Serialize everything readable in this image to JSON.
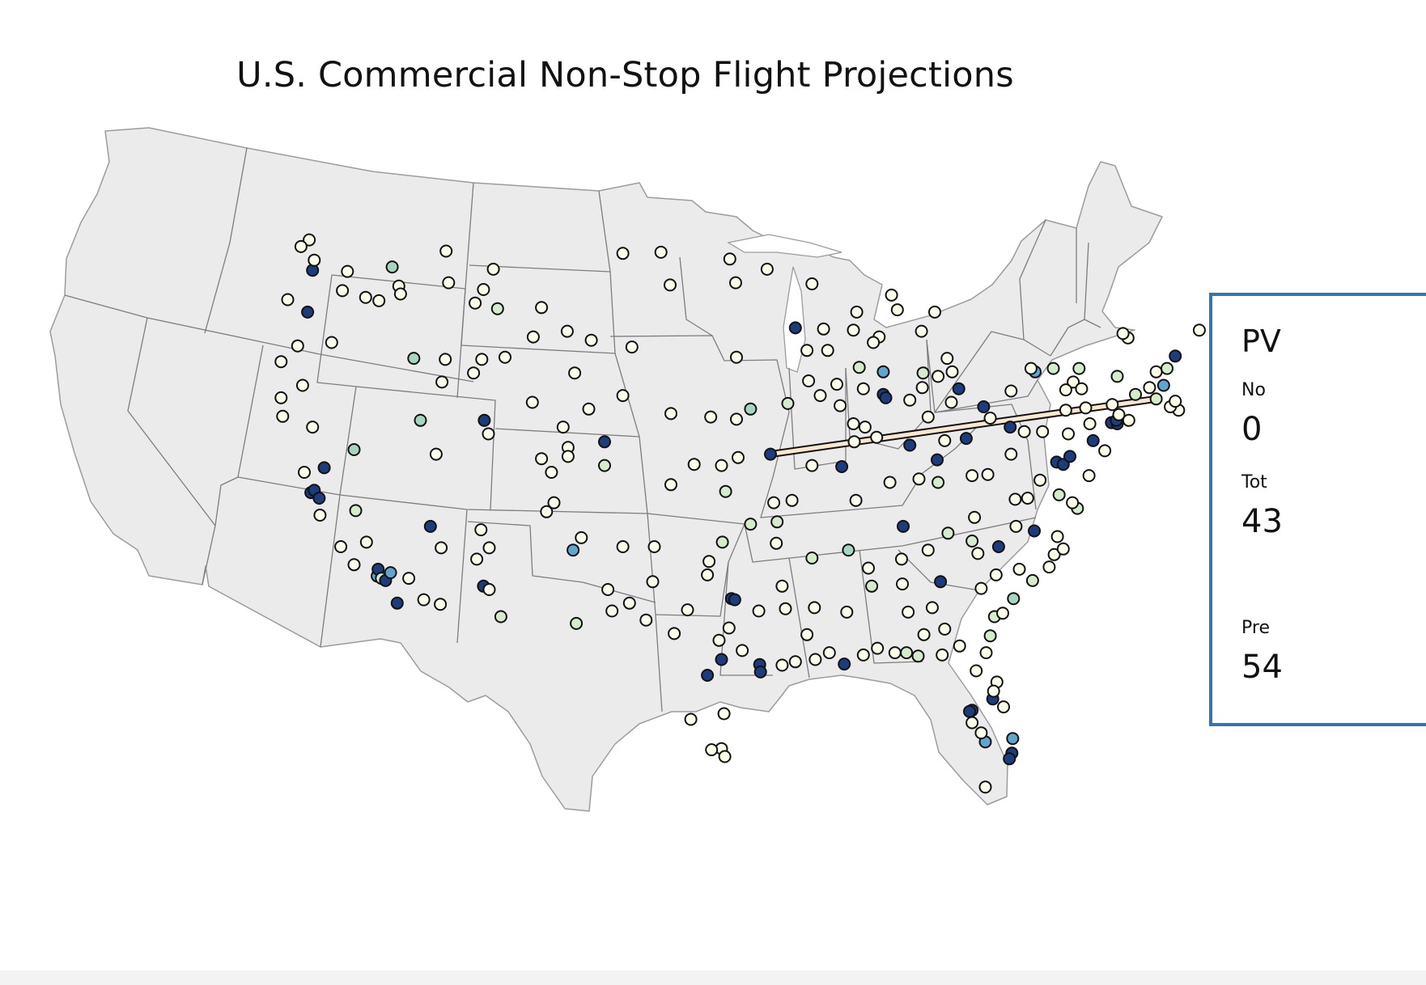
{
  "title": "U.S. Commercial Non-Stop Flight Projections",
  "colors": {
    "land": "#ebebeb",
    "border": "#7d7d7d",
    "route": "#fbe6cf",
    "panel_border": "#3a73a8",
    "c1": "#fdfee9",
    "c2": "#d4eccb",
    "c3": "#a6d6c0",
    "c4": "#5fa5cf",
    "c5": "#1d3c7b"
  },
  "panel": {
    "code": "PV",
    "nonstop_label": "No",
    "nonstop_value": "0",
    "total_label": "Tot",
    "total_value": "43",
    "predicted_label": "Pre",
    "predicted_value": "54"
  },
  "route": {
    "from": "MCI",
    "to": "PVD"
  },
  "airports": [
    [
      "BLI",
      -122.5,
      48.8,
      1
    ],
    [
      "FHR",
      -123.0,
      48.5,
      1
    ],
    [
      "SEA",
      -122.3,
      47.45,
      5
    ],
    [
      "PAE",
      -122.2,
      47.9,
      1
    ],
    [
      "EAT",
      -120.2,
      47.4,
      1
    ],
    [
      "YKM",
      -120.5,
      46.55,
      1
    ],
    [
      "PSC",
      -119.1,
      46.25,
      1
    ],
    [
      "ALW",
      -118.3,
      46.1,
      1
    ],
    [
      "PUW",
      -117.1,
      46.75,
      1
    ],
    [
      "LWS",
      -117.0,
      46.4,
      1
    ],
    [
      "GEG",
      -117.5,
      47.6,
      3
    ],
    [
      "PDX",
      -122.6,
      45.6,
      5
    ],
    [
      "AST",
      -123.8,
      46.15,
      1
    ],
    [
      "RDM",
      -121.15,
      44.25,
      1
    ],
    [
      "EUG",
      -123.2,
      44.1,
      1
    ],
    [
      "MFR",
      -122.9,
      42.35,
      1
    ],
    [
      "OTH",
      -124.2,
      43.4,
      1
    ],
    [
      "ACV",
      -124.1,
      40.98,
      1
    ],
    [
      "RDD",
      -122.3,
      40.5,
      1
    ],
    [
      "CEC",
      -124.2,
      41.8,
      1
    ],
    [
      "SMF",
      -121.6,
      38.7,
      5
    ],
    [
      "SFO",
      -122.4,
      37.6,
      5
    ],
    [
      "OAK",
      -122.2,
      37.7,
      5
    ],
    [
      "SJC",
      -121.9,
      37.35,
      5
    ],
    [
      "STS",
      -122.8,
      38.5,
      1
    ],
    [
      "MRY",
      -121.85,
      36.6,
      1
    ],
    [
      "SBP",
      -120.6,
      35.2,
      1
    ],
    [
      "SBA",
      -119.8,
      34.4,
      1
    ],
    [
      "FAT",
      -119.7,
      36.8,
      2
    ],
    [
      "BFL",
      -119.05,
      35.4,
      1
    ],
    [
      "LAX",
      -118.4,
      33.9,
      4
    ],
    [
      "BUR",
      -118.35,
      34.2,
      5
    ],
    [
      "LGB",
      -118.15,
      33.8,
      2
    ],
    [
      "SNA",
      -117.9,
      33.7,
      5
    ],
    [
      "ONT",
      -117.6,
      34.05,
      4
    ],
    [
      "PSP",
      -116.5,
      33.8,
      1
    ],
    [
      "SAN",
      -117.2,
      32.7,
      5
    ],
    [
      "RNO",
      -119.8,
      39.5,
      3
    ],
    [
      "LAS",
      -115.2,
      36.1,
      5
    ],
    [
      "BOI",
      -116.2,
      43.55,
      3
    ],
    [
      "SUN",
      -114.3,
      43.5,
      1
    ],
    [
      "TWF",
      -114.5,
      42.5,
      1
    ],
    [
      "IDA",
      -112.1,
      43.5,
      1
    ],
    [
      "PIH",
      -112.6,
      42.9,
      1
    ],
    [
      "JAC",
      -110.7,
      43.6,
      1
    ],
    [
      "BZN",
      -111.15,
      45.75,
      2
    ],
    [
      "MSO",
      -114.1,
      46.9,
      1
    ],
    [
      "HLN",
      -112.0,
      46.6,
      1
    ],
    [
      "BTM",
      -112.5,
      46.0,
      1
    ],
    [
      "GTF",
      -111.4,
      47.5,
      1
    ],
    [
      "FCA",
      -114.25,
      48.3,
      1
    ],
    [
      "BIL",
      -108.5,
      45.8,
      1
    ],
    [
      "COD",
      -109.0,
      44.5,
      1
    ],
    [
      "CPR",
      -106.5,
      42.9,
      1
    ],
    [
      "SLC",
      -111.95,
      40.8,
      5
    ],
    [
      "PVU",
      -111.7,
      40.2,
      1
    ],
    [
      "HDN",
      -107.2,
      40.5,
      1
    ],
    [
      "EGE",
      -106.9,
      39.6,
      1
    ],
    [
      "ASE",
      -106.9,
      39.2,
      1
    ],
    [
      "GJT",
      -108.5,
      39.1,
      1
    ],
    [
      "DEN",
      -104.7,
      39.85,
      5
    ],
    [
      "COS",
      -104.7,
      38.8,
      2
    ],
    [
      "MTJ",
      -107.9,
      38.5,
      1
    ],
    [
      "DRO",
      -107.75,
      37.15,
      1
    ],
    [
      "GCN",
      -112.15,
      35.95,
      1
    ],
    [
      "FLG",
      -111.65,
      35.15,
      1
    ],
    [
      "PHX",
      -112.0,
      33.45,
      5
    ],
    [
      "AZA",
      -111.65,
      33.3,
      1
    ],
    [
      "TUS",
      -110.95,
      32.1,
      2
    ],
    [
      "YUM",
      -114.6,
      32.65,
      1
    ],
    [
      "FMN",
      -108.2,
      36.75,
      1
    ],
    [
      "SAF",
      -106.1,
      35.6,
      1
    ],
    [
      "ABQ",
      -106.6,
      35.05,
      4
    ],
    [
      "ROW",
      -104.5,
      33.3,
      1
    ],
    [
      "ELP",
      -106.4,
      31.8,
      2
    ],
    [
      "MAF",
      -102.2,
      31.95,
      1
    ],
    [
      "LBB",
      -101.8,
      33.65,
      1
    ],
    [
      "AMA",
      -101.7,
      35.2,
      1
    ],
    [
      "SJT",
      -100.5,
      31.35,
      1
    ],
    [
      "ABI",
      -99.7,
      32.4,
      1
    ],
    [
      "DFW",
      -97.05,
      32.9,
      5
    ],
    [
      "DAL",
      -96.85,
      32.85,
      5
    ],
    [
      "SPS",
      -98.5,
      33.95,
      1
    ],
    [
      "ACT",
      -97.2,
      31.6,
      1
    ],
    [
      "AUS",
      -97.65,
      30.2,
      5
    ],
    [
      "SAT",
      -98.5,
      29.5,
      5
    ],
    [
      "GRK",
      -97.8,
      31.05,
      1
    ],
    [
      "CLL",
      -96.4,
      30.6,
      1
    ],
    [
      "IAH",
      -95.35,
      29.98,
      5
    ],
    [
      "HOU",
      -95.3,
      29.65,
      5
    ],
    [
      "TYR",
      -95.4,
      32.35,
      1
    ],
    [
      "BPT",
      -94.0,
      29.95,
      1
    ],
    [
      "CRP",
      -97.5,
      27.8,
      1
    ],
    [
      "LRD",
      -99.5,
      27.55,
      1
    ],
    [
      "HRL",
      -97.65,
      26.25,
      1
    ],
    [
      "MFE",
      -98.25,
      26.2,
      1
    ],
    [
      "BRO",
      -97.45,
      25.9,
      1
    ],
    [
      "LAW",
      -98.4,
      34.55,
      1
    ],
    [
      "OKC",
      -97.6,
      35.4,
      2
    ],
    [
      "TUL",
      -95.9,
      36.2,
      2
    ],
    [
      "XNA",
      -94.3,
      36.3,
      2
    ],
    [
      "FSM",
      -94.35,
      35.35,
      1
    ],
    [
      "LIT",
      -92.2,
      34.7,
      2
    ],
    [
      "TXK",
      -94.0,
      33.45,
      1
    ],
    [
      "SHV",
      -93.8,
      32.45,
      1
    ],
    [
      "MLU",
      -92.05,
      32.5,
      1
    ],
    [
      "AEX",
      -92.5,
      31.3,
      1
    ],
    [
      "LFT",
      -92.0,
      30.2,
      1
    ],
    [
      "LCH",
      -93.2,
      30.1,
      1
    ],
    [
      "BTR",
      -91.15,
      30.5,
      1
    ],
    [
      "MSY",
      -90.25,
      30.0,
      5
    ],
    [
      "GPT",
      -89.1,
      30.4,
      1
    ],
    [
      "JAN",
      -90.1,
      32.3,
      1
    ],
    [
      "MEM",
      -90.0,
      35.05,
      3
    ],
    [
      "TUP",
      -88.8,
      34.25,
      1
    ],
    [
      "GTR",
      -88.6,
      33.45,
      2
    ],
    [
      "HSV",
      -86.8,
      34.65,
      1
    ],
    [
      "BHM",
      -86.75,
      33.55,
      1
    ],
    [
      "MGM",
      -86.4,
      32.3,
      1
    ],
    [
      "DHN",
      -85.45,
      31.3,
      1
    ],
    [
      "MOB",
      -88.25,
      30.7,
      1
    ],
    [
      "PNS",
      -87.2,
      30.5,
      1
    ],
    [
      "VPS",
      -86.5,
      30.5,
      2
    ],
    [
      "ECP",
      -85.8,
      30.35,
      2
    ],
    [
      "TLH",
      -84.35,
      30.4,
      1
    ],
    [
      "VLD",
      -83.3,
      30.8,
      1
    ],
    [
      "ABY",
      -84.2,
      31.55,
      1
    ],
    [
      "CSG",
      -84.95,
      32.5,
      1
    ],
    [
      "ATL",
      -84.45,
      33.65,
      5
    ],
    [
      "AGS",
      -82.0,
      33.35,
      1
    ],
    [
      "SAV",
      -81.2,
      32.1,
      2
    ],
    [
      "BQK",
      -81.45,
      31.25,
      2
    ],
    [
      "JAX",
      -81.7,
      30.5,
      1
    ],
    [
      "GNV",
      -82.3,
      29.7,
      1
    ],
    [
      "DAB",
      -81.05,
      29.2,
      1
    ],
    [
      "MCO",
      -81.3,
      28.45,
      5
    ],
    [
      "SFB",
      -81.25,
      28.8,
      1
    ],
    [
      "MLB",
      -80.65,
      28.1,
      1
    ],
    [
      "TPA",
      -82.55,
      27.95,
      5
    ],
    [
      "PIE",
      -82.7,
      27.9,
      5
    ],
    [
      "SRQ",
      -82.55,
      27.4,
      1
    ],
    [
      "RSW",
      -81.75,
      26.55,
      4
    ],
    [
      "PGD",
      -82.0,
      26.95,
      1
    ],
    [
      "PBI",
      -80.1,
      26.7,
      4
    ],
    [
      "FLL",
      -80.15,
      26.05,
      5
    ],
    [
      "MIA",
      -80.3,
      25.8,
      5
    ],
    [
      "EYW",
      -81.75,
      24.55,
      1
    ],
    [
      "BNA",
      -86.7,
      36.1,
      5
    ],
    [
      "TYS",
      -84.0,
      35.8,
      2
    ],
    [
      "TRI",
      -82.4,
      36.5,
      1
    ],
    [
      "CHA",
      -85.2,
      35.05,
      1
    ],
    [
      "AVL",
      -82.55,
      35.45,
      2
    ],
    [
      "GSP",
      -82.2,
      34.9,
      1
    ],
    [
      "CLT",
      -80.95,
      35.2,
      5
    ],
    [
      "GSO",
      -79.9,
      36.1,
      1
    ],
    [
      "RDU",
      -78.8,
      35.9,
      5
    ],
    [
      "CAE",
      -81.1,
      33.95,
      1
    ],
    [
      "FLO",
      -79.7,
      34.2,
      1
    ],
    [
      "MYR",
      -78.9,
      33.7,
      2
    ],
    [
      "CHS",
      -80.05,
      32.9,
      3
    ],
    [
      "HHH",
      -80.7,
      32.25,
      1
    ],
    [
      "ILM",
      -77.9,
      34.3,
      1
    ],
    [
      "OAJ",
      -77.6,
      34.85,
      1
    ],
    [
      "EWN",
      -77.05,
      35.1,
      1
    ],
    [
      "PGV",
      -77.4,
      35.65,
      1
    ],
    [
      "ROA",
      -79.95,
      37.3,
      1
    ],
    [
      "LYH",
      -79.2,
      37.35,
      1
    ],
    [
      "CHO",
      -78.45,
      38.15,
      1
    ],
    [
      "RIC",
      -77.3,
      37.5,
      2
    ],
    [
      "ORF",
      -76.2,
      36.9,
      2
    ],
    [
      "PHF",
      -76.5,
      37.15,
      1
    ],
    [
      "IAD",
      -77.45,
      38.95,
      5
    ],
    [
      "DCA",
      -77.05,
      38.85,
      5
    ],
    [
      "BWI",
      -76.65,
      39.2,
      5
    ],
    [
      "SBY",
      -75.5,
      38.35,
      1
    ],
    [
      "CRW",
      -81.6,
      38.4,
      1
    ],
    [
      "HTS",
      -82.55,
      38.35,
      1
    ],
    [
      "CKB",
      -80.2,
      39.3,
      1
    ],
    [
      "PIT",
      -80.25,
      40.5,
      5
    ],
    [
      "ERI",
      -80.2,
      42.1,
      1
    ],
    [
      "LBE",
      -79.4,
      40.3,
      1
    ],
    [
      "AOO",
      -78.3,
      40.3,
      1
    ],
    [
      "IPT",
      -76.9,
      41.25,
      1
    ],
    [
      "AVP",
      -75.7,
      41.35,
      1
    ],
    [
      "ABE",
      -75.45,
      40.65,
      1
    ],
    [
      "PHL",
      -75.25,
      39.9,
      5
    ],
    [
      "ACY",
      -74.55,
      39.45,
      1
    ],
    [
      "MDT",
      -76.75,
      40.2,
      1
    ],
    [
      "EWR",
      -74.15,
      40.7,
      5
    ],
    [
      "JFK",
      -73.8,
      40.65,
      5
    ],
    [
      "LGA",
      -73.85,
      40.8,
      5
    ],
    [
      "HPN",
      -73.7,
      41.05,
      1
    ],
    [
      "ISP",
      -73.1,
      40.8,
      1
    ],
    [
      "BDL",
      -72.7,
      41.95,
      2
    ],
    [
      "PVD",
      -71.45,
      41.75,
      2
    ],
    [
      "BOS",
      -71.0,
      42.35,
      4
    ],
    [
      "ACK",
      -70.1,
      41.25,
      1
    ],
    [
      "MVY",
      -70.6,
      41.4,
      1
    ],
    [
      "HYA",
      -70.3,
      41.65,
      1
    ],
    [
      "ORH",
      -71.85,
      42.25,
      1
    ],
    [
      "MHT",
      -71.45,
      42.95,
      1
    ],
    [
      "PSM",
      -70.8,
      43.1,
      2
    ],
    [
      "PWM",
      -70.3,
      43.65,
      5
    ],
    [
      "BGR",
      -68.85,
      44.8,
      1
    ],
    [
      "BTV",
      -73.15,
      44.45,
      1
    ],
    [
      "PBG",
      -73.45,
      44.65,
      1
    ],
    [
      "ALB",
      -73.8,
      42.75,
      2
    ],
    [
      "SWF",
      -74.1,
      41.5,
      1
    ],
    [
      "ITH",
      -76.45,
      42.5,
      1
    ],
    [
      "ELM",
      -76.9,
      42.15,
      1
    ],
    [
      "SYR",
      -76.1,
      43.1,
      2
    ],
    [
      "ROC",
      -77.65,
      43.1,
      2
    ],
    [
      "BUF",
      -78.75,
      42.95,
      4
    ],
    [
      "IAG",
      -79.0,
      43.1,
      1
    ],
    [
      "BGM",
      -75.95,
      42.2,
      1
    ],
    [
      "CLE",
      -81.85,
      41.4,
      5
    ],
    [
      "CAK",
      -81.45,
      40.9,
      1
    ],
    [
      "TOL",
      -83.8,
      41.6,
      1
    ],
    [
      "DAY",
      -84.2,
      39.9,
      1
    ],
    [
      "CMH",
      -82.9,
      40.0,
      5
    ],
    [
      "CVG",
      -84.65,
      39.05,
      5
    ],
    [
      "SDF",
      -85.75,
      38.2,
      1
    ],
    [
      "LEX",
      -84.6,
      38.05,
      2
    ],
    [
      "EVV",
      -87.5,
      38.05,
      1
    ],
    [
      "IND",
      -86.3,
      39.7,
      5
    ],
    [
      "FWA",
      -85.2,
      40.95,
      1
    ],
    [
      "SBN",
      -86.3,
      41.7,
      1
    ],
    [
      "DTW",
      -83.35,
      42.2,
      5
    ],
    [
      "FNT",
      -83.75,
      42.95,
      1
    ],
    [
      "MBS",
      -84.05,
      43.55,
      1
    ],
    [
      "GRR",
      -85.5,
      42.9,
      2
    ],
    [
      "LAN",
      -84.6,
      42.75,
      1
    ],
    [
      "AZO",
      -85.55,
      42.25,
      1
    ],
    [
      "TVC",
      -85.6,
      44.75,
      1
    ],
    [
      "PLN",
      -84.8,
      45.6,
      1
    ],
    [
      "MQT",
      -87.4,
      46.35,
      1
    ],
    [
      "ESC",
      -87.05,
      45.7,
      1
    ],
    [
      "GRB",
      -88.15,
      44.5,
      1
    ],
    [
      "ATW",
      -88.5,
      44.25,
      1
    ],
    [
      "MKE",
      -87.9,
      42.95,
      4
    ],
    [
      "MSN",
      -89.35,
      43.15,
      2
    ],
    [
      "CWA",
      -89.7,
      44.8,
      1
    ],
    [
      "EAU",
      -91.5,
      44.85,
      1
    ],
    [
      "LSE",
      -91.25,
      43.9,
      1
    ],
    [
      "RHI",
      -89.5,
      45.6,
      1
    ],
    [
      "MSP",
      -93.2,
      44.9,
      5
    ],
    [
      "RST",
      -92.5,
      43.9,
      1
    ],
    [
      "DLH",
      -92.2,
      46.85,
      1
    ],
    [
      "BJI",
      -94.9,
      47.5,
      1
    ],
    [
      "ORD",
      -87.9,
      41.95,
      5
    ],
    [
      "MDW",
      -87.75,
      41.8,
      5
    ],
    [
      "RFD",
      -89.1,
      42.2,
      1
    ],
    [
      "MLI",
      -90.5,
      41.45,
      1
    ],
    [
      "PIA",
      -89.7,
      40.65,
      1
    ],
    [
      "BMI",
      -89.0,
      40.5,
      1
    ],
    [
      "CMI",
      -88.3,
      40.05,
      1
    ],
    [
      "SPI",
      -89.65,
      39.85,
      1
    ],
    [
      "DSM",
      -93.65,
      41.55,
      2
    ],
    [
      "CID",
      -91.7,
      41.9,
      1
    ],
    [
      "DBQ",
      -90.7,
      42.4,
      1
    ],
    [
      "ALO",
      -92.4,
      42.55,
      1
    ],
    [
      "OMA",
      -95.9,
      41.3,
      3
    ],
    [
      "LNK",
      -96.75,
      40.85,
      1
    ],
    [
      "GRI",
      -98.3,
      40.95,
      1
    ],
    [
      "FSD",
      -96.75,
      43.6,
      1
    ],
    [
      "RAP",
      -103.05,
      44.05,
      1
    ],
    [
      "FAR",
      -96.8,
      46.9,
      1
    ],
    [
      "GFK",
      -97.15,
      47.95,
      1
    ],
    [
      "BIS",
      -100.75,
      46.8,
      1
    ],
    [
      "MOT",
      -101.3,
      48.25,
      1
    ],
    [
      "ISN",
      -103.6,
      48.2,
      1
    ],
    [
      "MCI",
      -94.7,
      39.3,
      5
    ],
    [
      "STL",
      -90.4,
      38.75,
      5
    ],
    [
      "SGF",
      -93.4,
      37.25,
      1
    ],
    [
      "COU",
      -92.2,
      38.8,
      1
    ],
    [
      "CGI",
      -89.55,
      37.25,
      1
    ],
    [
      "ICT",
      -97.4,
      37.65,
      2
    ],
    [
      "MHK",
      -96.65,
      39.15,
      1
    ],
    [
      "JLN",
      -94.5,
      37.15,
      1
    ],
    [
      "SLN",
      -97.65,
      38.8,
      1
    ],
    [
      "GCK",
      -100.7,
      37.95,
      1
    ],
    [
      "HYS",
      -99.3,
      38.85,
      1
    ],
    [
      "LBF",
      -100.7,
      41.1,
      1
    ],
    [
      "BFF",
      -103.6,
      41.9,
      1
    ],
    [
      "SHR",
      -106.95,
      44.75,
      1
    ],
    [
      "GCC",
      -105.5,
      44.35,
      1
    ],
    [
      "RKS",
      -109.05,
      41.6,
      1
    ],
    [
      "LAR",
      -105.65,
      41.3,
      1
    ],
    [
      "HOB",
      -103.2,
      32.7,
      1
    ],
    [
      "CNM",
      -104.25,
      32.35,
      1
    ],
    [
      "TCC",
      -103.6,
      35.2,
      1
    ],
    [
      "PRC",
      -112.4,
      34.65,
      1
    ],
    [
      "IFP",
      -114.55,
      35.15,
      1
    ],
    [
      "IPL",
      -115.6,
      32.85,
      1
    ],
    [
      "ELY",
      -114.85,
      39.3,
      1
    ],
    [
      "EKO",
      -115.8,
      40.8,
      3
    ]
  ]
}
